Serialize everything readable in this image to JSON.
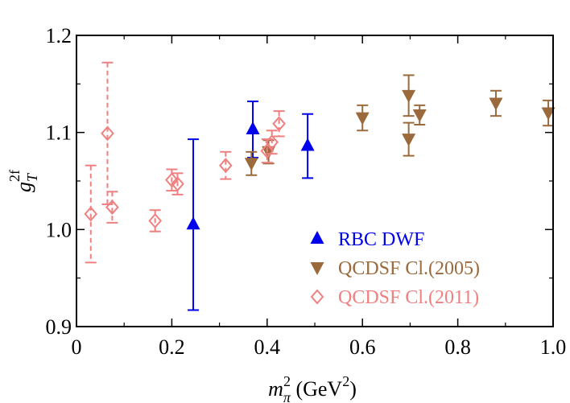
{
  "chart_data": {
    "type": "scatter",
    "xlabel": {
      "main": "m",
      "sub": "π",
      "sup": "2",
      "unit_open": " (GeV",
      "unit_sup": "2",
      "unit_close": ")"
    },
    "ylabel": {
      "main": "g",
      "sub": "T",
      "sup": "2f"
    },
    "xlim": [
      0,
      1.0
    ],
    "ylim": [
      0.9,
      1.2
    ],
    "x_ticks": [
      "0",
      "0.2",
      "0.4",
      "0.6",
      "0.8",
      "1.0"
    ],
    "y_ticks": [
      "0.9",
      "1.0",
      "1.1",
      "1.2"
    ],
    "grid": false,
    "legend_position": "bottom-right",
    "series": [
      {
        "name": "RBC DWF",
        "color": "#0000ee",
        "marker": "triangle-up",
        "line_style": "solid",
        "points": [
          {
            "x": 0.245,
            "y": 1.005,
            "err": 0.088
          },
          {
            "x": 0.37,
            "y": 1.103,
            "err": 0.029
          },
          {
            "x": 0.485,
            "y": 1.086,
            "err": 0.033
          }
        ]
      },
      {
        "name": "QCDSF Cl.(2005)",
        "color": "#9b6a3c",
        "marker": "triangle-down",
        "line_style": "solid",
        "points": [
          {
            "x": 0.367,
            "y": 1.068,
            "err": 0.012
          },
          {
            "x": 0.403,
            "y": 1.08,
            "err": 0.012
          },
          {
            "x": 0.6,
            "y": 1.115,
            "err": 0.013
          },
          {
            "x": 0.697,
            "y": 1.138,
            "err": 0.021
          },
          {
            "x": 0.697,
            "y": 1.093,
            "err": 0.017
          },
          {
            "x": 0.72,
            "y": 1.118,
            "err": 0.01
          },
          {
            "x": 0.88,
            "y": 1.13,
            "err": 0.013
          },
          {
            "x": 0.99,
            "y": 1.12,
            "err": 0.013
          }
        ]
      },
      {
        "name": "QCDSF Cl.(2011)",
        "color": "#f08080",
        "marker": "diamond-open",
        "line_style": "dashed",
        "points": [
          {
            "x": 0.03,
            "y": 1.016,
            "err": 0.05
          },
          {
            "x": 0.065,
            "y": 1.099,
            "err": 0.073
          },
          {
            "x": 0.075,
            "y": 1.023,
            "err": 0.016
          },
          {
            "x": 0.165,
            "y": 1.009,
            "err": 0.011
          },
          {
            "x": 0.2,
            "y": 1.051,
            "err": 0.011
          },
          {
            "x": 0.212,
            "y": 1.047,
            "err": 0.011
          },
          {
            "x": 0.313,
            "y": 1.066,
            "err": 0.014
          },
          {
            "x": 0.4,
            "y": 1.081,
            "err": 0.012
          },
          {
            "x": 0.41,
            "y": 1.09,
            "err": 0.012
          },
          {
            "x": 0.425,
            "y": 1.109,
            "err": 0.013
          }
        ]
      }
    ]
  }
}
